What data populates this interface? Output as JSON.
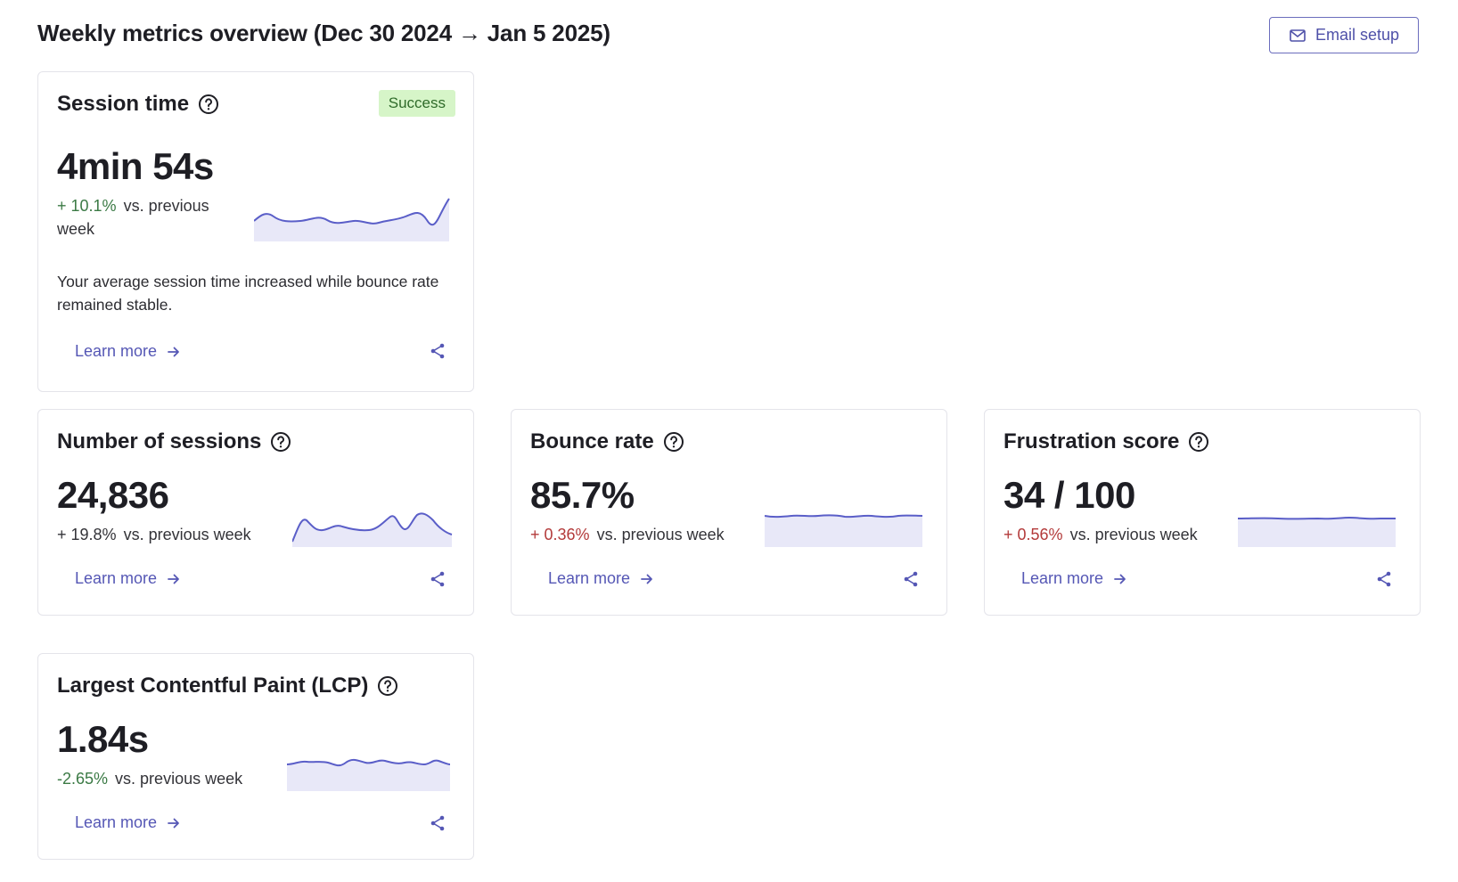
{
  "header": {
    "title": "Weekly metrics overview (Dec 30 2024 → Jan 5 2025)",
    "email_button": "Email setup"
  },
  "colors": {
    "accent": "#5557b5",
    "spark_line": "#5a5ec8",
    "spark_fill": "#e8e8f8",
    "success_bg": "#d6f5c8",
    "positive": "#3b7a45",
    "negative": "#b33a3a"
  },
  "cards": {
    "session_time": {
      "title": "Session time",
      "badge": "Success",
      "value": "4min 54s",
      "delta": "+ 10.1%",
      "delta_suffix": "vs. previous week",
      "description": "Your average session time increased while bounce rate remained stable.",
      "learn_more": "Learn more"
    },
    "sessions": {
      "title": "Number of sessions",
      "value": "24,836",
      "delta": "+ 19.8%",
      "delta_suffix": "vs. previous week",
      "learn_more": "Learn more"
    },
    "bounce": {
      "title": "Bounce rate",
      "value": "85.7%",
      "delta": "+ 0.36%",
      "delta_suffix": "vs. previous week",
      "learn_more": "Learn more"
    },
    "frustration": {
      "title": "Frustration score",
      "value": "34 / 100",
      "delta": "+ 0.56%",
      "delta_suffix": "vs. previous week",
      "learn_more": "Learn more"
    },
    "lcp": {
      "title": "Largest Contentful Paint (LCP)",
      "value": "1.84s",
      "delta": "-2.65%",
      "delta_suffix": "vs. previous week",
      "learn_more": "Learn more"
    }
  }
}
